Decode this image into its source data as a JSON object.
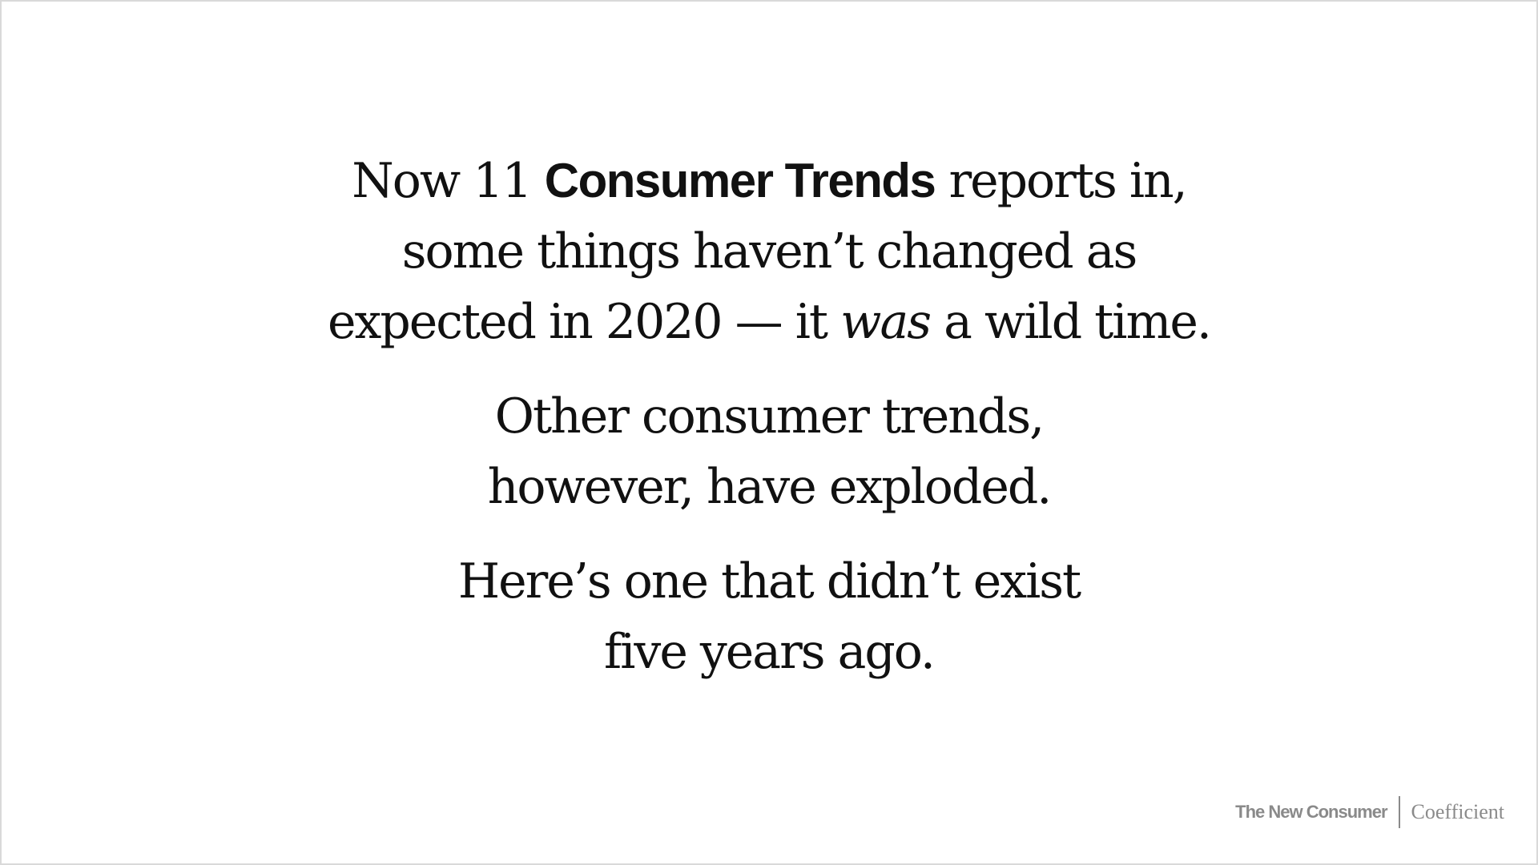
{
  "slide": {
    "paragraphs": [
      {
        "lines": [
          {
            "pre": "Now 11 ",
            "bold": "Consumer Trends",
            "post": " reports in,"
          },
          {
            "text": "some things haven’t changed as"
          },
          {
            "pre": "expected in 2020 — it ",
            "italic": "was",
            "post": " a wild time."
          }
        ]
      },
      {
        "lines": [
          {
            "text": "Other consumer trends,"
          },
          {
            "text": "however, have exploded."
          }
        ]
      },
      {
        "lines": [
          {
            "text": "Here’s one that didn’t exist"
          },
          {
            "text": "five years ago."
          }
        ]
      }
    ]
  },
  "footer": {
    "brand_primary": "The New Consumer",
    "brand_secondary": "Coefficient"
  },
  "colors": {
    "text": "#111111",
    "footer": "#8a8a8a",
    "background": "#ffffff",
    "border": "#d9d9d9"
  }
}
